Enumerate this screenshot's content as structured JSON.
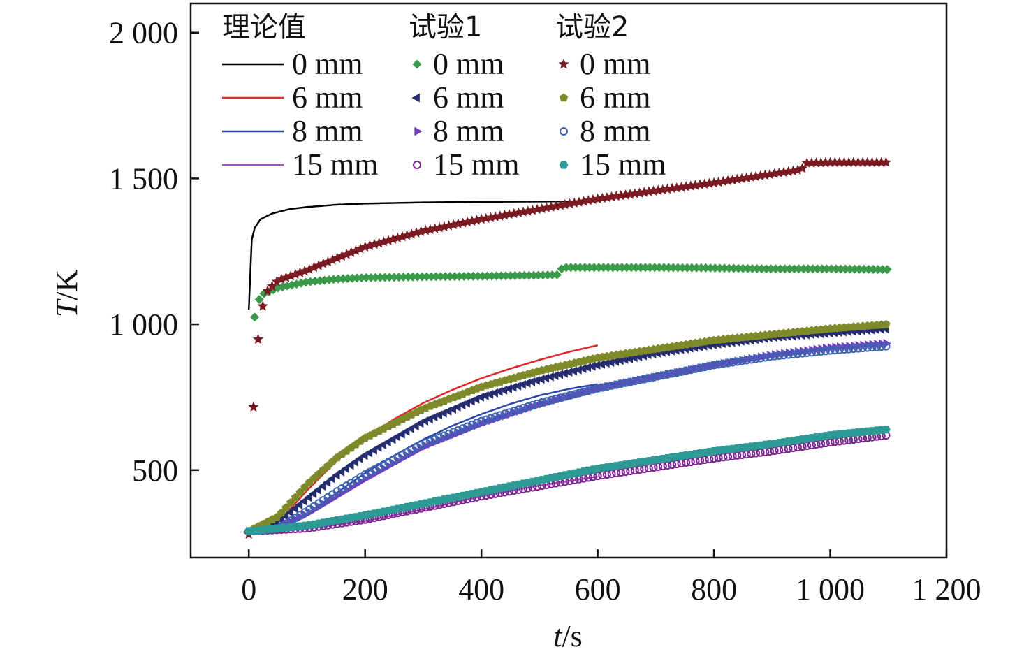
{
  "chart_data": {
    "type": "line",
    "xlabel_var": "t",
    "xlabel_unit": "/s",
    "ylabel_var": "T",
    "ylabel_unit": "/K",
    "xlim": [
      -100,
      1200
    ],
    "ylim": [
      200,
      2100
    ],
    "xticks": [
      0,
      200,
      400,
      600,
      800,
      1000,
      1200
    ],
    "xtick_labels": [
      "0",
      "200",
      "400",
      "600",
      "800",
      "1 000",
      "1 200"
    ],
    "yticks": [
      500,
      1000,
      1500,
      2000
    ],
    "ytick_labels": [
      "500",
      "1 000",
      "1 500",
      "2 000"
    ],
    "legend_headers": [
      "理论值",
      "试验1",
      "试验2"
    ],
    "legend_placement": "top-left",
    "series": [
      {
        "group": "理论值",
        "name": "0 mm",
        "style": "line",
        "color": "#000000",
        "x": [
          0,
          2,
          5,
          10,
          20,
          40,
          70,
          100,
          150,
          200,
          300,
          400,
          500,
          600
        ],
        "y": [
          1050,
          1200,
          1290,
          1330,
          1360,
          1380,
          1395,
          1402,
          1410,
          1414,
          1418,
          1420,
          1421,
          1422
        ]
      },
      {
        "group": "理论值",
        "name": "6 mm",
        "style": "line",
        "color": "#e0262a",
        "x": [
          0,
          50,
          100,
          150,
          200,
          250,
          300,
          350,
          400,
          450,
          500,
          550,
          600
        ],
        "y": [
          290,
          320,
          430,
          530,
          610,
          675,
          730,
          775,
          815,
          848,
          878,
          905,
          928
        ]
      },
      {
        "group": "理论值",
        "name": "8 mm",
        "style": "line",
        "color": "#2b46a8",
        "x": [
          0,
          50,
          100,
          150,
          200,
          250,
          300,
          350,
          400,
          450,
          500,
          550,
          600
        ],
        "y": [
          290,
          300,
          350,
          420,
          490,
          550,
          605,
          652,
          692,
          727,
          756,
          778,
          795
        ]
      },
      {
        "group": "理论值",
        "name": "15 mm",
        "style": "line",
        "color": "#a050b8",
        "x": [
          0,
          100,
          200,
          300,
          400,
          500,
          600
        ],
        "y": [
          290,
          300,
          325,
          365,
          410,
          447,
          478
        ]
      },
      {
        "group": "试验1",
        "name": "0 mm",
        "marker": "diamond",
        "color": "#3a9a4a",
        "x": [
          10,
          20,
          50,
          100,
          150,
          200,
          300,
          400,
          500,
          530,
          540,
          600,
          700,
          800,
          900,
          1000,
          1100
        ],
        "y": [
          1025,
          1100,
          1125,
          1145,
          1155,
          1160,
          1163,
          1165,
          1168,
          1170,
          1195,
          1195,
          1195,
          1193,
          1190,
          1190,
          1188
        ]
      },
      {
        "group": "试验1",
        "name": "6 mm",
        "marker": "triangle-left",
        "color": "#262d6e",
        "x": [
          0,
          50,
          100,
          150,
          200,
          300,
          400,
          500,
          600,
          700,
          800,
          900,
          1000,
          1100
        ],
        "y": [
          290,
          320,
          400,
          480,
          550,
          665,
          750,
          810,
          860,
          900,
          930,
          955,
          970,
          985
        ]
      },
      {
        "group": "试验1",
        "name": "8 mm",
        "marker": "triangle-right",
        "color": "#7040c0",
        "x": [
          0,
          50,
          100,
          150,
          200,
          300,
          400,
          500,
          600,
          700,
          800,
          900,
          1000,
          1100
        ],
        "y": [
          290,
          300,
          350,
          410,
          470,
          580,
          660,
          725,
          780,
          820,
          860,
          895,
          920,
          935
        ]
      },
      {
        "group": "试验1",
        "name": "15 mm",
        "marker": "circle",
        "color": "#7a2590",
        "x": [
          0,
          100,
          200,
          300,
          400,
          500,
          600,
          700,
          800,
          900,
          1000,
          1100
        ],
        "y": [
          290,
          300,
          330,
          370,
          410,
          445,
          480,
          510,
          540,
          565,
          595,
          620
        ]
      },
      {
        "group": "试验2",
        "name": "0 mm",
        "marker": "star",
        "color": "#7a1a22",
        "x": [
          0,
          10,
          20,
          30,
          50,
          100,
          150,
          200,
          300,
          400,
          500,
          600,
          700,
          800,
          900,
          950,
          960,
          1000,
          1100
        ],
        "y": [
          280,
          825,
          1030,
          1110,
          1150,
          1185,
          1225,
          1265,
          1320,
          1360,
          1395,
          1430,
          1458,
          1485,
          1515,
          1530,
          1553,
          1555,
          1555
        ]
      },
      {
        "group": "试验2",
        "name": "6 mm",
        "marker": "pentagon",
        "color": "#7e8a2a",
        "x": [
          0,
          50,
          100,
          150,
          200,
          300,
          400,
          500,
          600,
          700,
          800,
          900,
          1000,
          1100
        ],
        "y": [
          290,
          340,
          450,
          540,
          610,
          710,
          785,
          840,
          885,
          915,
          945,
          965,
          985,
          1000
        ]
      },
      {
        "group": "试验2",
        "name": "8 mm",
        "marker": "circle",
        "color": "#3a64b0",
        "x": [
          0,
          50,
          100,
          150,
          200,
          300,
          400,
          500,
          600,
          700,
          800,
          900,
          1000,
          1100
        ],
        "y": [
          290,
          300,
          360,
          425,
          485,
          590,
          668,
          730,
          780,
          820,
          860,
          890,
          910,
          925
        ]
      },
      {
        "group": "试验2",
        "name": "15 mm",
        "marker": "hexagon",
        "color": "#2e9a96",
        "x": [
          0,
          100,
          200,
          300,
          400,
          500,
          600,
          700,
          800,
          900,
          1000,
          1100
        ],
        "y": [
          290,
          310,
          345,
          385,
          425,
          465,
          505,
          535,
          565,
          590,
          620,
          640
        ]
      }
    ]
  }
}
